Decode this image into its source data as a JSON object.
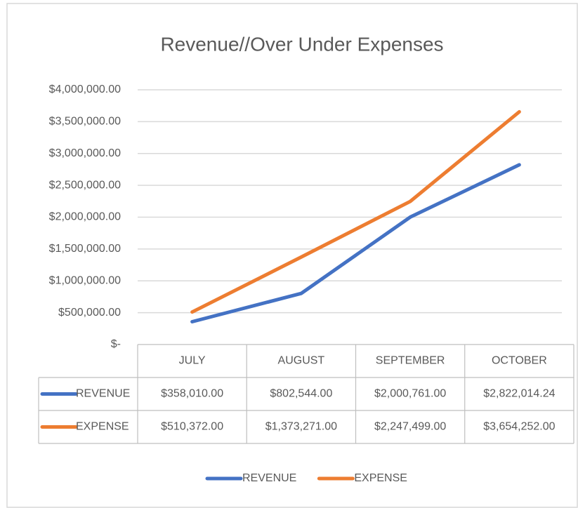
{
  "chart_data": {
    "type": "line",
    "title": "Revenue//Over Under Expenses",
    "categories": [
      "JULY",
      "AUGUST",
      "SEPTEMBER",
      "OCTOBER"
    ],
    "series": [
      {
        "name": "REVENUE",
        "color": "#4472c4",
        "values": [
          358010,
          802544,
          2000761,
          2822014.24
        ],
        "value_labels": [
          "$358,010.00",
          "$802,544.00",
          "$2,000,761.00",
          "$2,822,014.24"
        ]
      },
      {
        "name": "EXPENSE",
        "color": "#ed7d31",
        "values": [
          510372,
          1373271,
          2247499,
          3654252
        ],
        "value_labels": [
          "$510,372.00",
          "$1,373,271.00",
          "$2,247,499.00",
          "$3,654,252.00"
        ]
      }
    ],
    "ylim": [
      0,
      4000000
    ],
    "yticks": [
      {
        "value": 0,
        "label": "$-"
      },
      {
        "value": 500000,
        "label": "$500,000.00"
      },
      {
        "value": 1000000,
        "label": "$1,000,000.00"
      },
      {
        "value": 1500000,
        "label": "$1,500,000.00"
      },
      {
        "value": 2000000,
        "label": "$2,000,000.00"
      },
      {
        "value": 2500000,
        "label": "$2,500,000.00"
      },
      {
        "value": 3000000,
        "label": "$3,000,000.00"
      },
      {
        "value": 3500000,
        "label": "$3,500,000.00"
      },
      {
        "value": 4000000,
        "label": "$4,000,000.00"
      }
    ],
    "grid": true,
    "data_table": true,
    "legend": "bottom"
  }
}
